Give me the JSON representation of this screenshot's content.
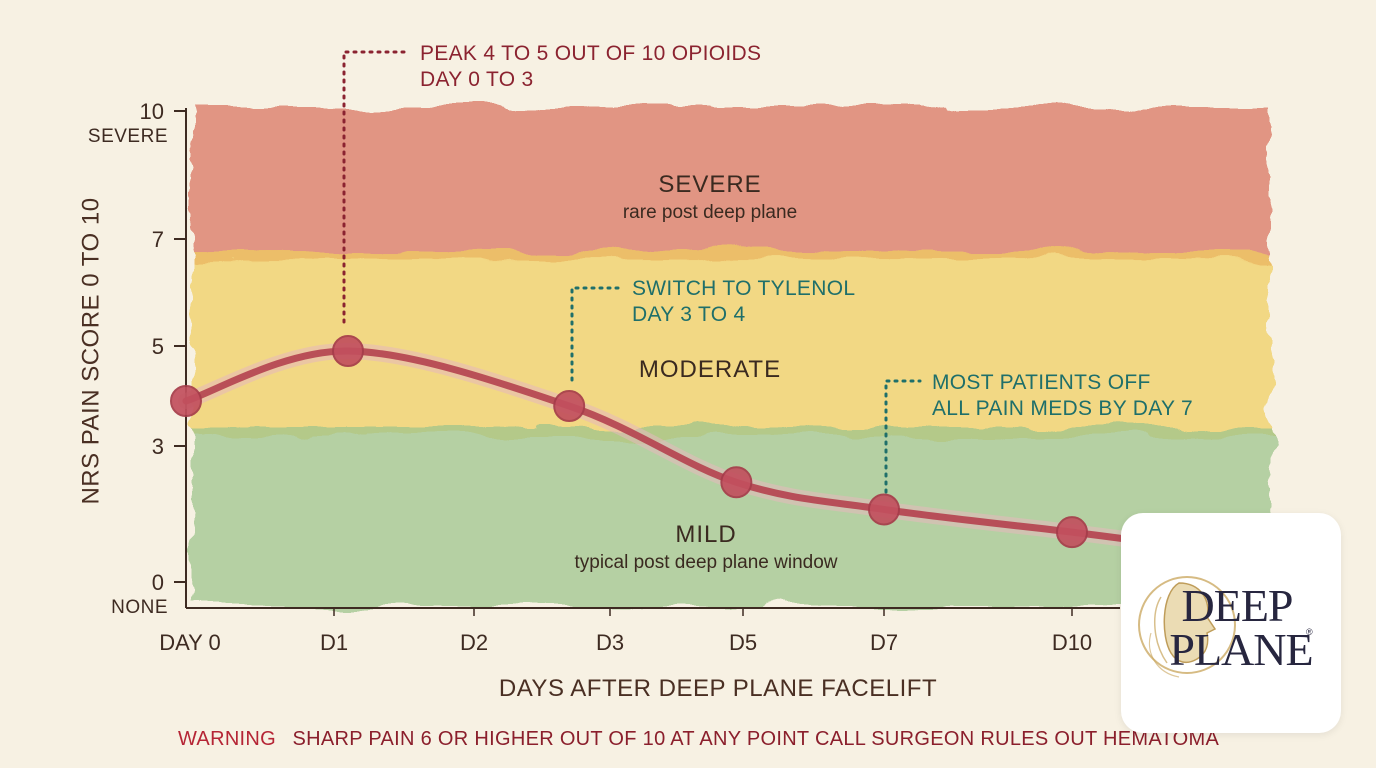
{
  "chart_data": {
    "type": "line",
    "title": "",
    "xlabel": "DAYS AFTER DEEP PLANE FACELIFT",
    "ylabel": "NRS PAIN SCORE 0 TO 10",
    "ylim": [
      0,
      10
    ],
    "y_ticks": [
      {
        "value": 10,
        "label": "10",
        "sublabel": "SEVERE"
      },
      {
        "value": 7,
        "label": "7",
        "sublabel": ""
      },
      {
        "value": 5,
        "label": "5",
        "sublabel": ""
      },
      {
        "value": 3,
        "label": "3",
        "sublabel": ""
      },
      {
        "value": 0,
        "label": "0",
        "sublabel": "NONE"
      }
    ],
    "x_ticks": [
      "DAY 0",
      "D1",
      "D2",
      "D3",
      "D5",
      "D7",
      "D10"
    ],
    "series": [
      {
        "points": [
          {
            "day": 0,
            "score": 3.9
          },
          {
            "day": 1.1,
            "score": 4.9
          },
          {
            "day": 2.7,
            "score": 3.8
          },
          {
            "day": 4.9,
            "score": 2.2
          },
          {
            "day": 7,
            "score": 1.6
          },
          {
            "day": 10,
            "score": 1.1
          },
          {
            "day": 11.2,
            "score": 0.9
          }
        ],
        "color": "#b4414f"
      }
    ],
    "zones": [
      {
        "name": "SEVERE",
        "description": "rare post deep plane",
        "range": [
          6.7,
          10
        ],
        "color": "#d9725e"
      },
      {
        "name": "MODERATE",
        "description": "",
        "range": [
          3.3,
          6.7
        ],
        "color": "#f1cf60"
      },
      {
        "name": "MILD",
        "description": "typical post deep plane window",
        "range": [
          0,
          3.3
        ],
        "color": "#9dc48b"
      }
    ],
    "annotations": [
      {
        "lines": [
          "PEAK 4 TO 5 OUT OF 10 OPIOIDS",
          "DAY 0 TO 3"
        ],
        "at_day": 1.1,
        "color": "#8b2330"
      },
      {
        "lines": [
          "SWITCH TO TYLENOL",
          "DAY 3 TO 4"
        ],
        "at_day": 2.7,
        "color": "#1f6f6a"
      },
      {
        "lines": [
          "MOST PATIENTS OFF",
          "ALL PAIN MEDS BY DAY 7"
        ],
        "at_day": 7,
        "color": "#1f6f6a"
      }
    ],
    "grid": false
  },
  "warning": {
    "lead": "WARNING",
    "text": "SHARP PAIN 6 OR HIGHER OUT OF 10 AT ANY POINT  CALL SURGEON  RULES OUT HEMATOMA"
  },
  "logo": {
    "line1": "DEEP",
    "line2": "PLANE",
    "mark": "®"
  }
}
